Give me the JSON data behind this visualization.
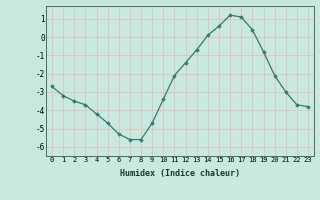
{
  "x": [
    0,
    1,
    2,
    3,
    4,
    5,
    6,
    7,
    8,
    9,
    10,
    11,
    12,
    13,
    14,
    15,
    16,
    17,
    18,
    19,
    20,
    21,
    22,
    23
  ],
  "y": [
    -2.7,
    -3.2,
    -3.5,
    -3.7,
    -4.2,
    -4.7,
    -5.3,
    -5.6,
    -5.6,
    -4.7,
    -3.4,
    -2.1,
    -1.4,
    -0.7,
    0.1,
    0.6,
    1.2,
    1.1,
    0.4,
    -0.8,
    -2.1,
    -3.0,
    -3.7,
    -3.8
  ],
  "xlim": [
    -0.5,
    23.5
  ],
  "ylim": [
    -6.5,
    1.7
  ],
  "yticks": [
    1,
    0,
    -1,
    -2,
    -3,
    -4,
    -5,
    -6
  ],
  "xticks": [
    0,
    1,
    2,
    3,
    4,
    5,
    6,
    7,
    8,
    9,
    10,
    11,
    12,
    13,
    14,
    15,
    16,
    17,
    18,
    19,
    20,
    21,
    22,
    23
  ],
  "xlabel": "Humidex (Indice chaleur)",
  "line_color": "#2e7d6e",
  "marker_color": "#2e7d6e",
  "bg_color": "#c8e8e0",
  "grid_color": "#e8b8b8"
}
